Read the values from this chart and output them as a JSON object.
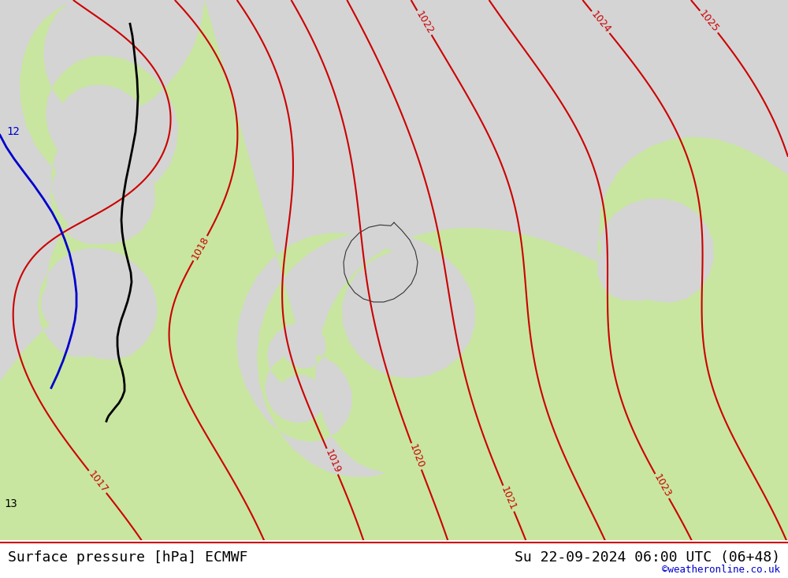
{
  "title_left": "Surface pressure [hPa] ECMWF",
  "title_right": "Su 22-09-2024 06:00 UTC (06+48)",
  "watermark": "©weatheronline.co.uk",
  "background_land": "#c8e6a0",
  "background_sea": "#d4d4d4",
  "isobar_color": "#cc0000",
  "border_color_dark": "#333333",
  "border_color_gray": "#aaaaaa",
  "figsize": [
    10.0,
    7.33
  ],
  "dpi": 100,
  "title_fontsize": 13,
  "watermark_fontsize": 9
}
